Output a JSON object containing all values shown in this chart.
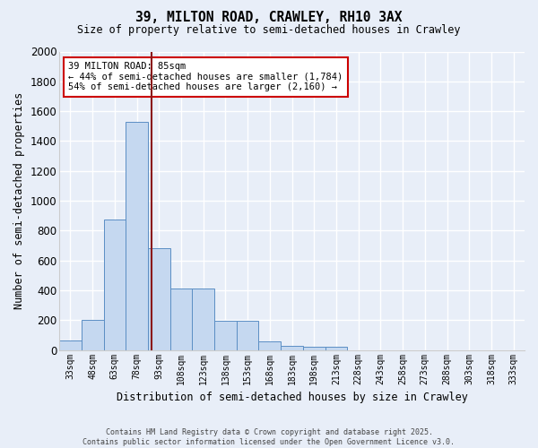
{
  "title_line1": "39, MILTON ROAD, CRAWLEY, RH10 3AX",
  "title_line2": "Size of property relative to semi-detached houses in Crawley",
  "xlabel": "Distribution of semi-detached houses by size in Crawley",
  "ylabel": "Number of semi-detached properties",
  "categories": [
    "33sqm",
    "48sqm",
    "63sqm",
    "78sqm",
    "93sqm",
    "108sqm",
    "123sqm",
    "138sqm",
    "153sqm",
    "168sqm",
    "183sqm",
    "198sqm",
    "213sqm",
    "228sqm",
    "243sqm",
    "258sqm",
    "273sqm",
    "288sqm",
    "303sqm",
    "318sqm",
    "333sqm"
  ],
  "values": [
    65,
    200,
    875,
    1530,
    680,
    415,
    415,
    195,
    195,
    55,
    25,
    20,
    20,
    0,
    0,
    0,
    0,
    0,
    0,
    0,
    0
  ],
  "bar_color": "#c5d8f0",
  "bar_edge_color": "#5b8ec4",
  "background_color": "#e8eef8",
  "grid_color": "#ffffff",
  "vline_x": 3.65,
  "vline_color": "#8b1a1a",
  "annotation_text_line1": "39 MILTON ROAD: 85sqm",
  "annotation_text_line2": "← 44% of semi-detached houses are smaller (1,784)",
  "annotation_text_line3": "54% of semi-detached houses are larger (2,160) →",
  "ylim": [
    0,
    2000
  ],
  "yticks": [
    0,
    200,
    400,
    600,
    800,
    1000,
    1200,
    1400,
    1600,
    1800,
    2000
  ],
  "footnote_line1": "Contains HM Land Registry data © Crown copyright and database right 2025.",
  "footnote_line2": "Contains public sector information licensed under the Open Government Licence v3.0."
}
